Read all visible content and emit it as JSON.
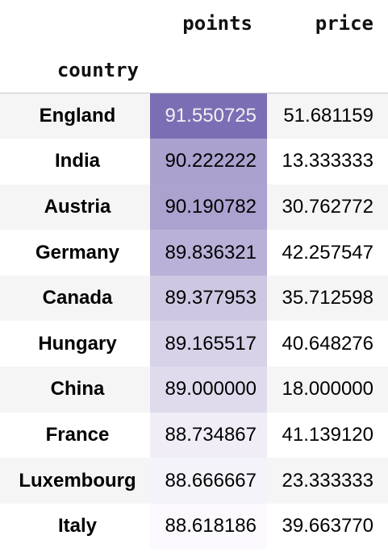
{
  "table": {
    "columns": [
      "points",
      "price"
    ],
    "index_name": "country",
    "gradient": {
      "column": "points",
      "low_color": "#fbf9fd",
      "high_color": "#7c6eb4"
    },
    "rows": [
      {
        "country": "England",
        "points": "91.550725",
        "price": "51.681159",
        "points_value": 91.550725
      },
      {
        "country": "India",
        "points": "90.222222",
        "price": "13.333333",
        "points_value": 90.222222
      },
      {
        "country": "Austria",
        "points": "90.190782",
        "price": "30.762772",
        "points_value": 90.190782
      },
      {
        "country": "Germany",
        "points": "89.836321",
        "price": "42.257547",
        "points_value": 89.836321
      },
      {
        "country": "Canada",
        "points": "89.377953",
        "price": "35.712598",
        "points_value": 89.377953
      },
      {
        "country": "Hungary",
        "points": "89.165517",
        "price": "40.648276",
        "points_value": 89.165517
      },
      {
        "country": "China",
        "points": "89.000000",
        "price": "18.000000",
        "points_value": 89.0
      },
      {
        "country": "France",
        "points": "88.734867",
        "price": "41.139120",
        "points_value": 88.734867
      },
      {
        "country": "Luxembourg",
        "points": "88.666667",
        "price": "23.333333",
        "points_value": 88.666667
      },
      {
        "country": "Italy",
        "points": "88.618186",
        "price": "39.663770",
        "points_value": 88.618186
      }
    ]
  }
}
